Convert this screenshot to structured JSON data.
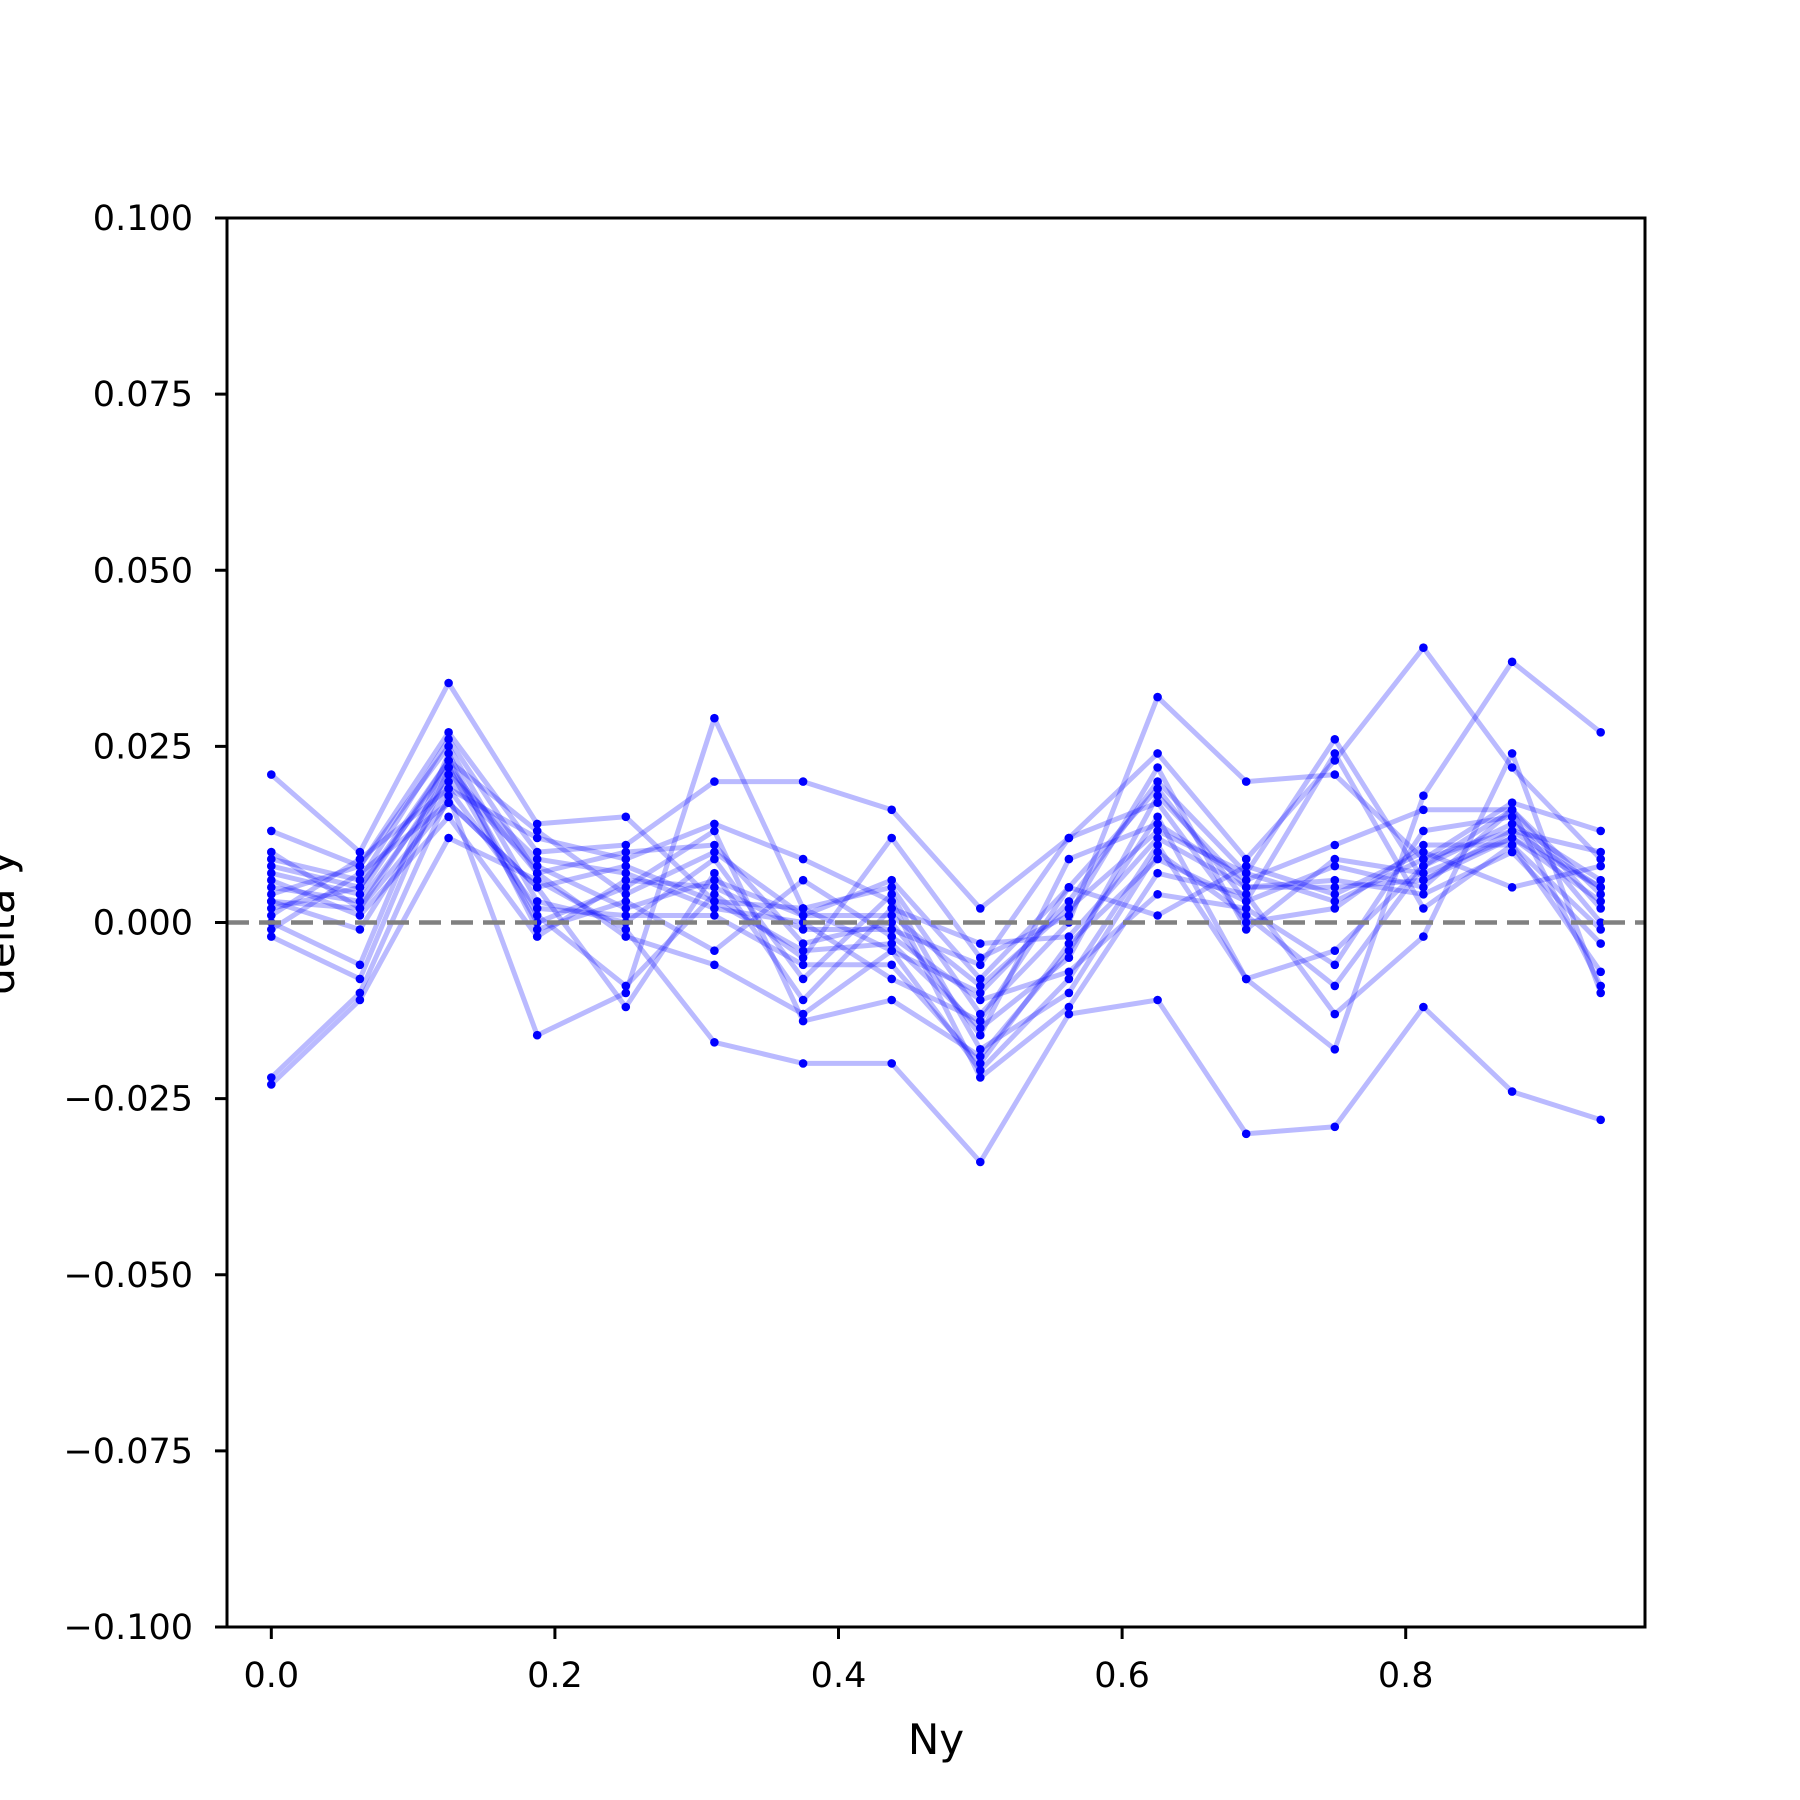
{
  "chart_data": {
    "type": "line",
    "title": "",
    "xlabel": "Ny",
    "ylabel": "delta y",
    "xlim": [
      -0.03125,
      0.96875
    ],
    "ylim": [
      -0.1,
      0.1
    ],
    "grid": false,
    "legend": "none",
    "x_ticks": [
      0.0,
      0.2,
      0.4,
      0.6,
      0.8
    ],
    "x_tick_labels": [
      "0.0",
      "0.2",
      "0.4",
      "0.6",
      "0.8"
    ],
    "y_ticks": [
      0.1,
      0.075,
      0.05,
      0.025,
      0.0,
      -0.025,
      -0.05,
      -0.075,
      -0.1
    ],
    "y_tick_labels": [
      "0.100",
      "0.075",
      "0.050",
      "0.025",
      "0.000",
      "−0.025",
      "−0.050",
      "−0.075",
      "−0.100"
    ],
    "reference_line": {
      "y": 0.0,
      "style": "dashed",
      "color": "#808080"
    },
    "series_color": "#0000ff",
    "x": [
      0.0,
      0.0625,
      0.125,
      0.1875,
      0.25,
      0.3125,
      0.375,
      0.4375,
      0.5,
      0.5625,
      0.625,
      0.6875,
      0.75,
      0.8125,
      0.875,
      0.9375
    ],
    "series": [
      {
        "values": [
          0.021,
          0.01,
          0.034,
          0.014,
          0.015,
          0.003,
          0.002,
          -0.004,
          -0.01,
          0.003,
          0.02,
          0.007,
          0.026,
          0.006,
          0.013,
          0.005
        ]
      },
      {
        "values": [
          -0.022,
          -0.01,
          0.018,
          -0.016,
          -0.01,
          0.029,
          0.002,
          0.005,
          -0.013,
          0.0,
          0.032,
          0.02,
          0.021,
          0.009,
          0.017,
          0.013
        ]
      },
      {
        "values": [
          -0.023,
          -0.011,
          0.012,
          0.006,
          -0.001,
          -0.017,
          -0.02,
          -0.02,
          -0.034,
          -0.013,
          -0.011,
          -0.03,
          -0.029,
          -0.012,
          -0.024,
          -0.028
        ]
      },
      {
        "values": [
          0.013,
          0.008,
          0.027,
          0.01,
          0.011,
          0.02,
          0.02,
          0.016,
          0.002,
          0.012,
          0.024,
          0.009,
          0.023,
          0.039,
          0.022,
          0.009
        ]
      },
      {
        "values": [
          0.002,
          0.005,
          0.022,
          0.0,
          0.005,
          0.013,
          -0.014,
          -0.011,
          -0.019,
          -0.004,
          0.015,
          -0.008,
          -0.018,
          0.018,
          0.037,
          0.027
        ]
      },
      {
        "values": [
          0.005,
          0.003,
          0.02,
          0.008,
          0.002,
          0.006,
          0.001,
          0.006,
          -0.008,
          0.005,
          0.019,
          0.003,
          0.024,
          0.002,
          0.011,
          -0.007
        ]
      },
      {
        "values": [
          0.009,
          0.006,
          0.026,
          0.007,
          0.01,
          0.011,
          -0.003,
          0.0,
          -0.016,
          0.009,
          0.014,
          0.006,
          0.011,
          0.016,
          0.016,
          0.004
        ]
      },
      {
        "values": [
          0.003,
          -0.001,
          0.019,
          0.012,
          0.009,
          0.014,
          0.009,
          0.003,
          -0.022,
          -0.012,
          0.007,
          0.004,
          -0.013,
          -0.002,
          0.024,
          -0.01
        ]
      },
      {
        "values": [
          0.007,
          0.004,
          0.023,
          0.001,
          -0.009,
          0.004,
          -0.005,
          0.012,
          -0.005,
          0.001,
          0.022,
          -0.001,
          0.009,
          0.007,
          0.012,
          0.003
        ]
      },
      {
        "values": [
          0.0,
          -0.006,
          0.024,
          -0.001,
          0.003,
          -0.004,
          0.006,
          -0.002,
          -0.011,
          -0.007,
          0.004,
          0.002,
          -0.006,
          0.013,
          0.015,
          0.0
        ]
      },
      {
        "values": [
          -0.001,
          0.007,
          0.017,
          0.005,
          -0.012,
          0.007,
          -0.011,
          0.002,
          -0.003,
          -0.002,
          0.012,
          0.005,
          0.006,
          0.004,
          0.01,
          -0.003
        ]
      },
      {
        "values": [
          0.01,
          0.002,
          0.021,
          0.009,
          0.007,
          0.002,
          0.0,
          -0.008,
          -0.014,
          0.005,
          0.001,
          0.008,
          0.004,
          0.01,
          0.005,
          0.008
        ]
      },
      {
        "values": [
          0.004,
          0.008,
          0.025,
          0.003,
          0.0,
          0.009,
          -0.008,
          0.004,
          -0.018,
          -0.01,
          0.01,
          0.001,
          -0.009,
          0.008,
          0.014,
          0.006
        ]
      },
      {
        "values": [
          0.006,
          0.001,
          0.015,
          -0.002,
          0.006,
          0.005,
          -0.001,
          -0.001,
          -0.006,
          0.012,
          0.017,
          0.0,
          0.002,
          0.011,
          0.011,
          -0.001
        ]
      },
      {
        "values": [
          0.001,
          0.009,
          0.019,
          0.002,
          0.001,
          0.001,
          -0.006,
          -0.006,
          -0.02,
          -0.003,
          0.009,
          0.003,
          0.008,
          0.005,
          0.016,
          0.002
        ]
      },
      {
        "values": [
          0.008,
          0.005,
          0.023,
          0.013,
          0.004,
          0.01,
          0.001,
          0.001,
          -0.009,
          0.002,
          0.013,
          0.007,
          0.003,
          0.009,
          0.013,
          0.01
        ]
      },
      {
        "values": [
          0.003,
          0.002,
          0.017,
          0.005,
          0.008,
          0.003,
          -0.004,
          -0.003,
          -0.015,
          -0.005,
          0.018,
          0.005,
          0.005,
          0.006,
          0.012,
          0.005
        ]
      },
      {
        "values": [
          -0.002,
          -0.008,
          0.022,
          0.007,
          -0.002,
          -0.006,
          -0.013,
          -0.004,
          -0.021,
          -0.008,
          0.011,
          -0.008,
          -0.004,
          0.008,
          0.016,
          -0.009
        ]
      }
    ]
  }
}
